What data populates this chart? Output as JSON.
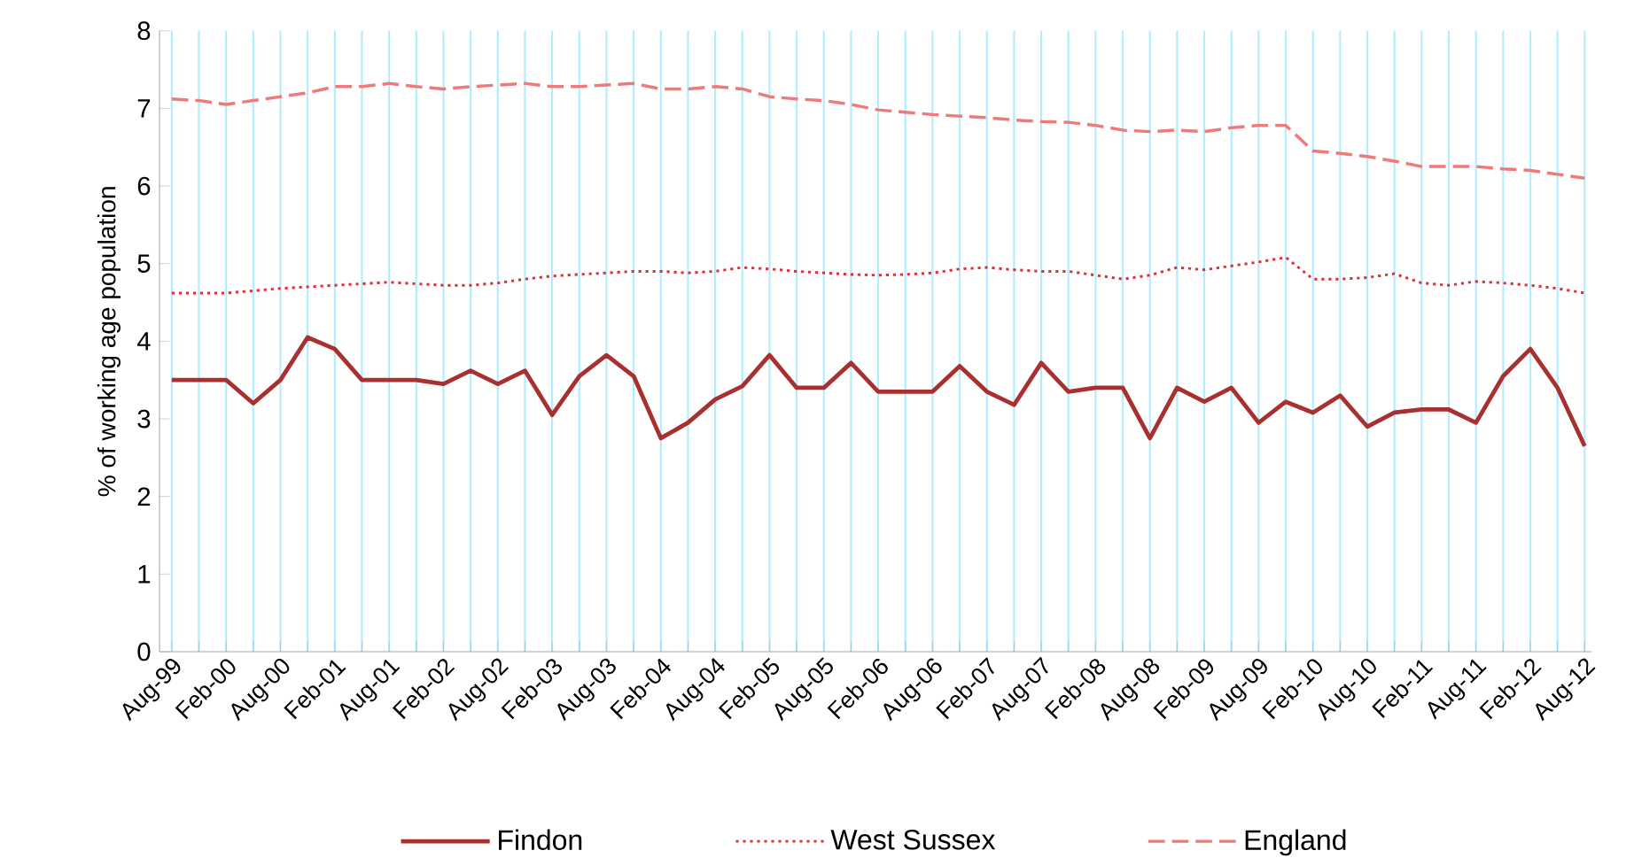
{
  "chart_data": {
    "type": "line",
    "ylabel": "% of working age population",
    "categories": [
      "Aug-99",
      null,
      "Feb-00",
      null,
      "Aug-00",
      null,
      "Feb-01",
      null,
      "Aug-01",
      null,
      "Feb-02",
      null,
      "Aug-02",
      null,
      "Feb-03",
      null,
      "Aug-03",
      null,
      "Feb-04",
      null,
      "Aug-04",
      null,
      "Feb-05",
      null,
      "Aug-05",
      null,
      "Feb-06",
      null,
      "Aug-06",
      null,
      "Feb-07",
      null,
      "Aug-07",
      null,
      "Feb-08",
      null,
      "Aug-08",
      null,
      "Feb-09",
      null,
      "Aug-09",
      null,
      "Feb-10",
      null,
      "Aug-10",
      null,
      "Feb-11",
      null,
      "Aug-11",
      null,
      "Feb-12",
      null,
      "Aug-12"
    ],
    "series": [
      {
        "name": "Findon",
        "color": "#a8302e",
        "line_style": "solid",
        "values": [
          3.5,
          3.5,
          3.5,
          3.2,
          3.5,
          4.05,
          3.9,
          3.5,
          3.5,
          3.5,
          3.45,
          3.62,
          3.45,
          3.62,
          3.05,
          3.55,
          3.82,
          3.55,
          2.75,
          2.95,
          3.25,
          3.42,
          3.82,
          3.4,
          3.4,
          3.72,
          3.35,
          3.35,
          3.35,
          3.68,
          3.35,
          3.18,
          3.72,
          3.35,
          3.4,
          3.4,
          2.75,
          3.4,
          3.22,
          3.4,
          2.95,
          3.22,
          3.08,
          3.3,
          2.9,
          3.08,
          3.12,
          3.12,
          2.95,
          3.55,
          3.9,
          3.4,
          2.65
        ]
      },
      {
        "name": "West Sussex",
        "color": "#e0303c",
        "line_style": "dotted",
        "values": [
          4.62,
          4.62,
          4.62,
          4.65,
          4.68,
          4.7,
          4.72,
          4.74,
          4.76,
          4.74,
          4.72,
          4.72,
          4.75,
          4.8,
          4.84,
          4.86,
          4.88,
          4.9,
          4.9,
          4.88,
          4.9,
          4.95,
          4.93,
          4.9,
          4.88,
          4.86,
          4.85,
          4.86,
          4.88,
          4.93,
          4.95,
          4.92,
          4.9,
          4.9,
          4.85,
          4.8,
          4.85,
          4.95,
          4.92,
          4.97,
          5.02,
          5.08,
          4.8,
          4.8,
          4.82,
          4.87,
          4.75,
          4.72,
          4.77,
          4.75,
          4.72,
          4.68,
          4.62
        ]
      },
      {
        "name": "England",
        "color": "#ee7a7a",
        "line_style": "dashed",
        "values": [
          7.12,
          7.1,
          7.05,
          7.1,
          7.15,
          7.2,
          7.28,
          7.28,
          7.32,
          7.28,
          7.25,
          7.28,
          7.3,
          7.32,
          7.28,
          7.28,
          7.3,
          7.32,
          7.25,
          7.25,
          7.28,
          7.25,
          7.15,
          7.12,
          7.1,
          7.05,
          6.98,
          6.95,
          6.92,
          6.9,
          6.88,
          6.85,
          6.83,
          6.82,
          6.78,
          6.72,
          6.7,
          6.72,
          6.7,
          6.75,
          6.78,
          6.78,
          6.45,
          6.42,
          6.38,
          6.32,
          6.25,
          6.25,
          6.25,
          6.22,
          6.2,
          6.15,
          6.1
        ]
      }
    ],
    "ylim": [
      0,
      8
    ],
    "yticks": [
      0,
      1,
      2,
      3,
      4,
      5,
      6,
      7,
      8
    ],
    "grid": "x",
    "legend": "bottom"
  }
}
